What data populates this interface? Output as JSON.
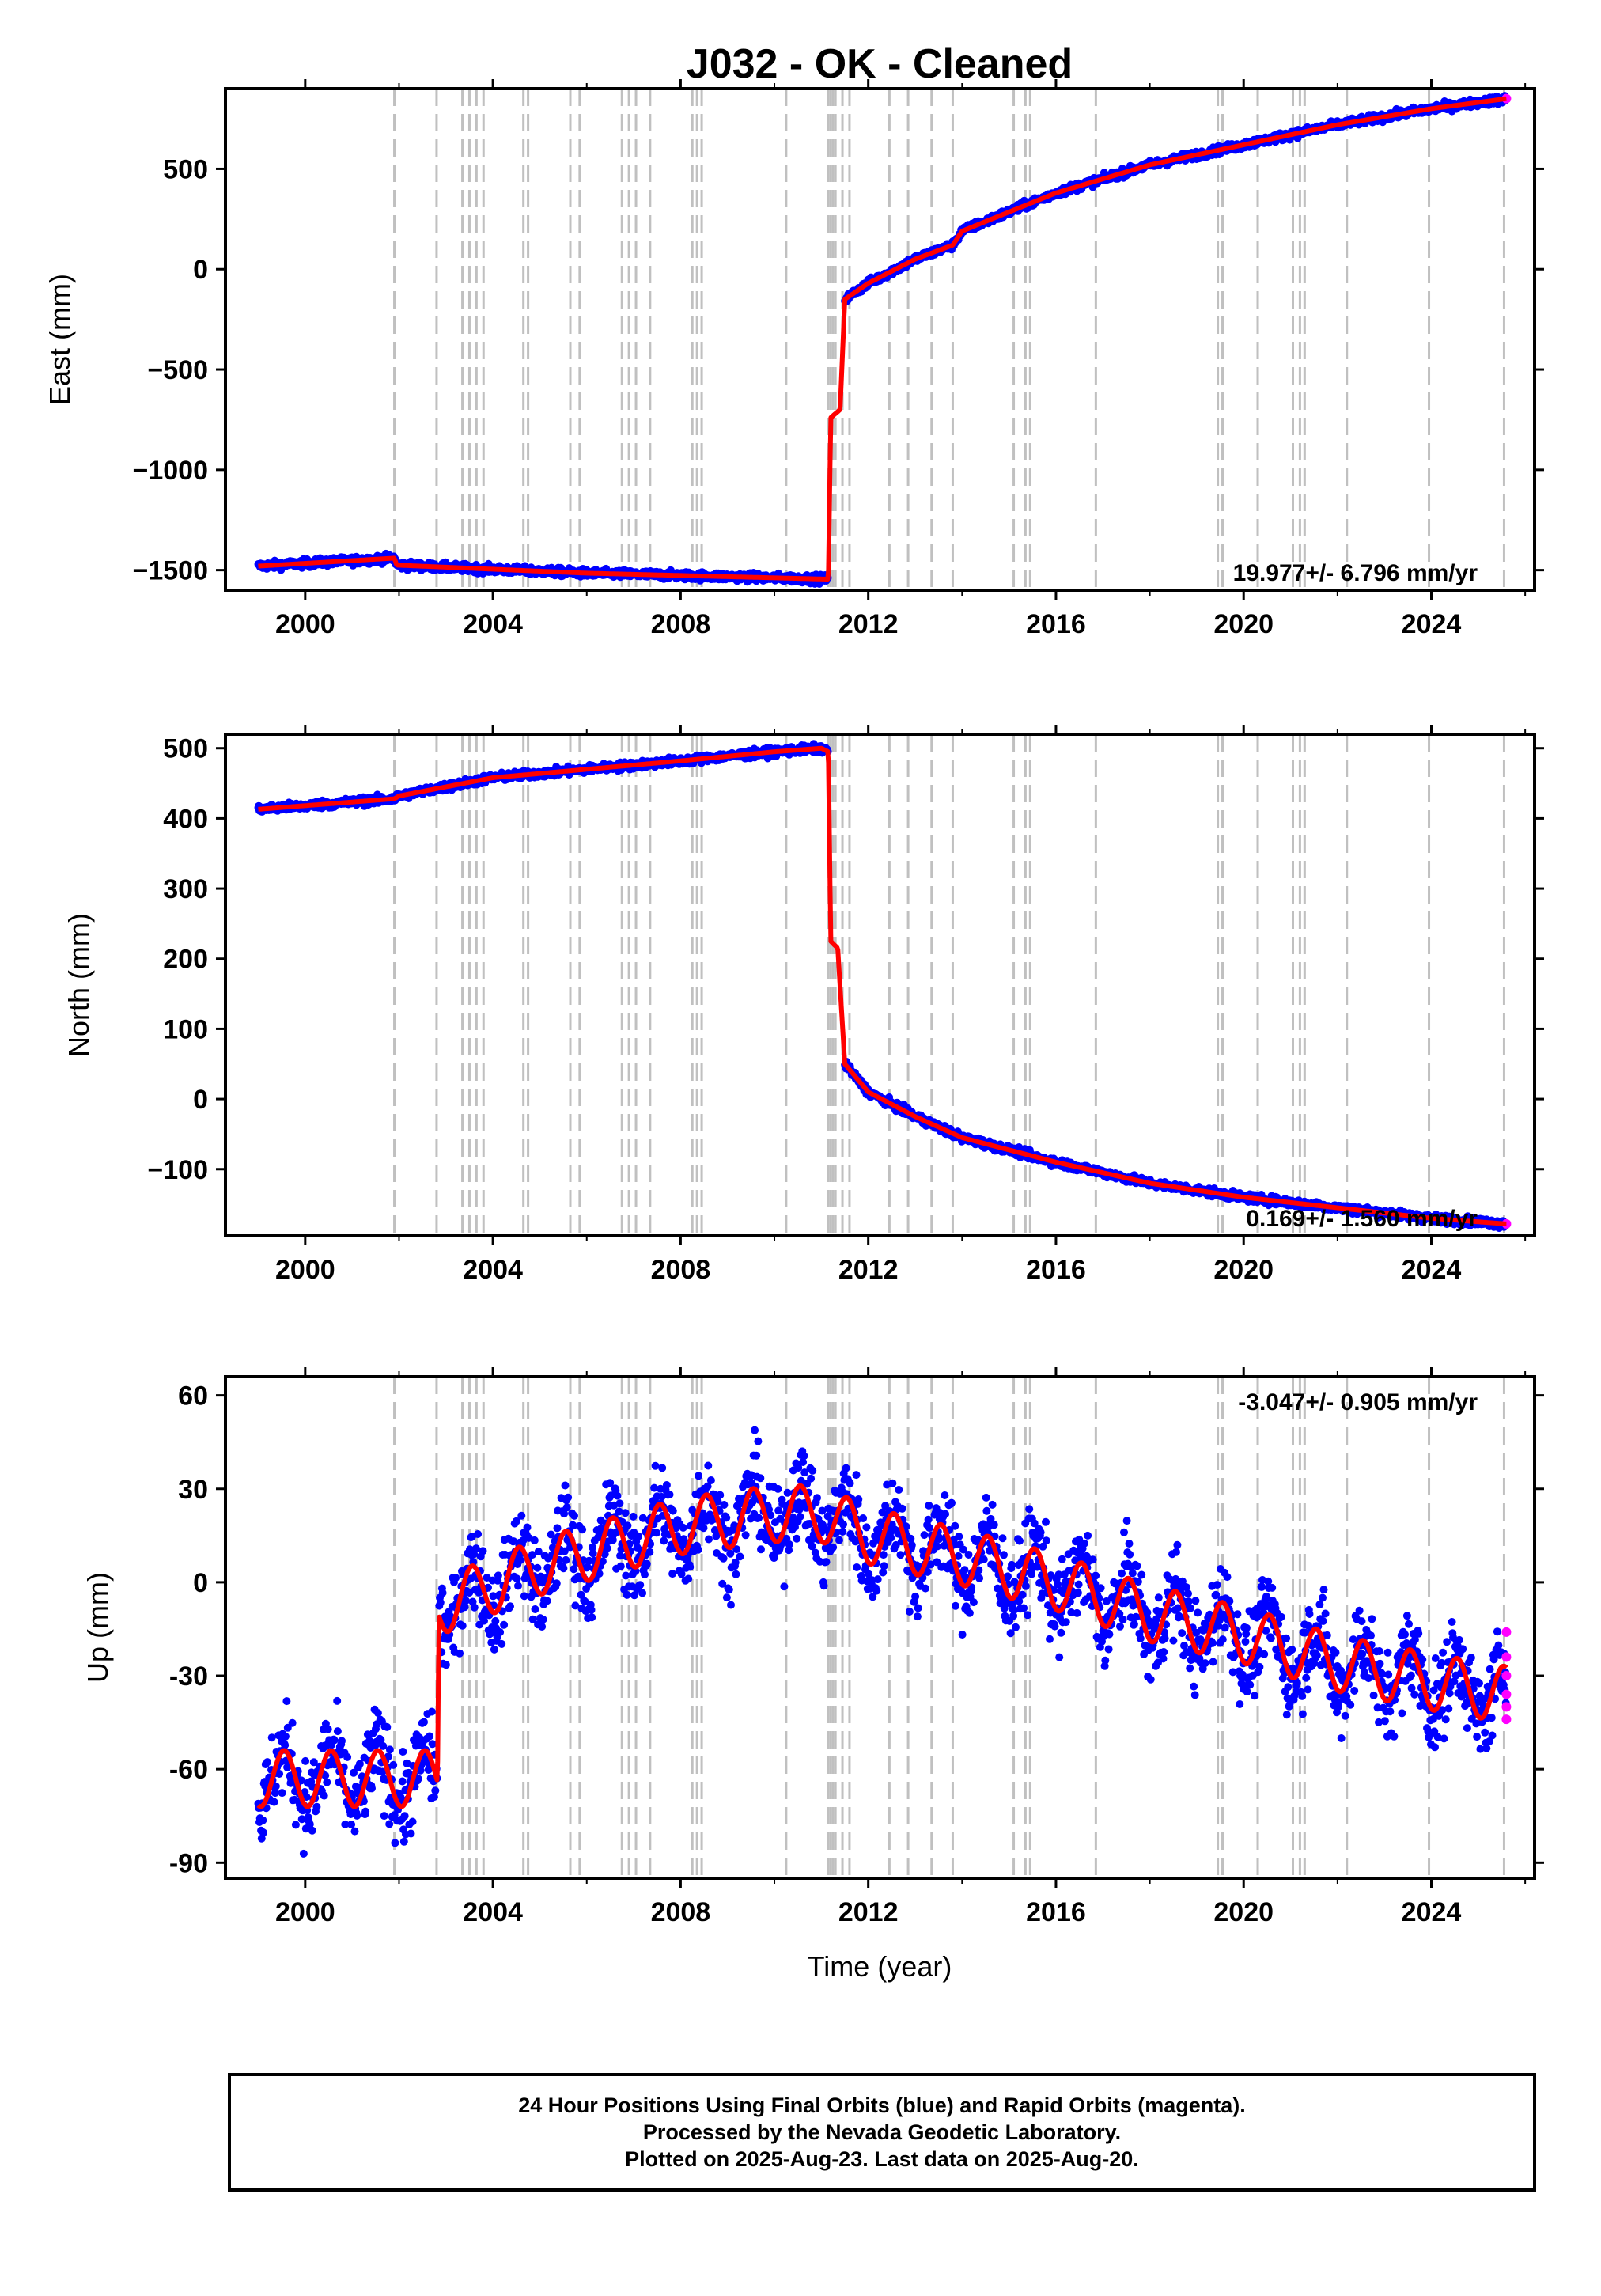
{
  "title": "J032  - OK - Cleaned",
  "colors": {
    "final_points": "#0000ff",
    "rapid_points": "#ff00ff",
    "model_line": "#ff0000",
    "event_lines": "#c0c0c0",
    "axis": "#000000"
  },
  "x_axis": {
    "label": "Time (year)",
    "range": [
      1998.3,
      2026.2
    ],
    "ticks": [
      2000,
      2004,
      2008,
      2012,
      2016,
      2020,
      2024
    ],
    "tick_labels": [
      "2000",
      "2004",
      "2008",
      "2012",
      "2016",
      "2020",
      "2024"
    ]
  },
  "event_lines": [
    2001.9,
    2002.8,
    2003.35,
    2003.5,
    2003.65,
    2003.8,
    2004.65,
    2004.75,
    2005.65,
    2005.85,
    2006.75,
    2006.9,
    2007.05,
    2007.35,
    2008.25,
    2008.35,
    2008.45,
    2010.25,
    2011.15,
    2011.2,
    2011.25,
    2011.3,
    2011.45,
    2011.6,
    2012.45,
    2012.85,
    2013.35,
    2013.8,
    2015.1,
    2015.35,
    2015.45,
    2016.85,
    2019.45,
    2019.55,
    2020.3,
    2021.05,
    2021.2,
    2021.3,
    2022.2,
    2023.95,
    2025.55
  ],
  "chart_data": [
    {
      "type": "scatter",
      "panel": "east",
      "ylabel": "East (mm)",
      "ylim": [
        -1600,
        900
      ],
      "yticks": [
        500,
        0,
        -500,
        -1000,
        -1500
      ],
      "ytick_labels": [
        "500",
        "0",
        "−500",
        "−1000",
        "−1500"
      ],
      "rate_label": "19.977+/- 6.796 mm/yr",
      "rate_position": "bottom-right",
      "x": [
        1999.0,
        2001.9,
        2001.95,
        2006.0,
        2011.15,
        2011.2,
        2011.4,
        2011.5,
        2012.0,
        2013.0,
        2013.8,
        2014.0,
        2016.0,
        2018.0,
        2020.0,
        2022.0,
        2024.0,
        2025.6
      ],
      "y": [
        -1480,
        -1440,
        -1475,
        -1515,
        -1545,
        -740,
        -700,
        -150,
        -70,
        50,
        120,
        190,
        380,
        520,
        620,
        720,
        800,
        850
      ],
      "series": [
        {
          "name": "Final Orbits (blue)",
          "trend": "tracks model line"
        },
        {
          "name": "Rapid Orbits (magenta)",
          "x": [
            2025.6
          ],
          "y": [
            850
          ]
        }
      ]
    },
    {
      "type": "scatter",
      "panel": "north",
      "ylabel": "North (mm)",
      "ylim": [
        -195,
        520
      ],
      "yticks": [
        500,
        400,
        300,
        200,
        100,
        0,
        -100
      ],
      "ytick_labels": [
        "500",
        "400",
        "300",
        "200",
        "100",
        "0",
        "−100"
      ],
      "rate_label": "0.169+/- 1.560 mm/yr",
      "rate_position": "bottom-right",
      "x": [
        1999.0,
        2001.9,
        2002.0,
        2004.0,
        2006.0,
        2008.0,
        2010.0,
        2011.0,
        2011.15,
        2011.2,
        2011.35,
        2011.5,
        2012.0,
        2013.0,
        2014.0,
        2016.0,
        2018.0,
        2020.0,
        2022.0,
        2024.0,
        2025.6
      ],
      "y": [
        413,
        428,
        432,
        458,
        470,
        482,
        495,
        500,
        495,
        225,
        215,
        50,
        10,
        -25,
        -55,
        -90,
        -120,
        -140,
        -155,
        -170,
        -178
      ],
      "series": [
        {
          "name": "Final Orbits (blue)",
          "trend": "tracks model line"
        },
        {
          "name": "Rapid Orbits (magenta)",
          "x": [
            2025.6
          ],
          "y": [
            -178
          ]
        }
      ]
    },
    {
      "type": "scatter",
      "panel": "up",
      "ylabel": "Up (mm)",
      "ylim": [
        -95,
        66
      ],
      "yticks": [
        60,
        30,
        0,
        -30,
        -60,
        -90
      ],
      "ytick_labels": [
        "60",
        "30",
        "0",
        "-30",
        "-60",
        "-90"
      ],
      "rate_label": "-3.047+/- 0.905 mm/yr",
      "rate_position": "top-right",
      "annual_amplitude_mm": 9,
      "scatter_mm": 7,
      "x": [
        1999.0,
        2002.82,
        2002.85,
        2005.0,
        2008.0,
        2010.0,
        2011.0,
        2012.0,
        2014.0,
        2016.0,
        2018.0,
        2020.0,
        2022.0,
        2024.0,
        2025.6
      ],
      "y": [
        -63,
        -63,
        -8,
        5,
        18,
        22,
        22,
        15,
        8,
        0,
        -10,
        -17,
        -26,
        -32,
        -36
      ],
      "series": [
        {
          "name": "Final Orbits (blue)",
          "trend": "tracks model line with annual cycle"
        },
        {
          "name": "Rapid Orbits (magenta)",
          "x": [
            2025.6,
            2025.6,
            2025.6,
            2025.6,
            2025.6,
            2025.6
          ],
          "y": [
            -16,
            -24,
            -30,
            -36,
            -40,
            -44
          ]
        }
      ]
    }
  ],
  "caption": {
    "line1": "24 Hour Positions Using Final Orbits (blue) and Rapid Orbits (magenta).",
    "line2": "Processed by the Nevada Geodetic Laboratory.",
    "line3": "Plotted on 2025-Aug-23. Last data on 2025-Aug-20."
  }
}
